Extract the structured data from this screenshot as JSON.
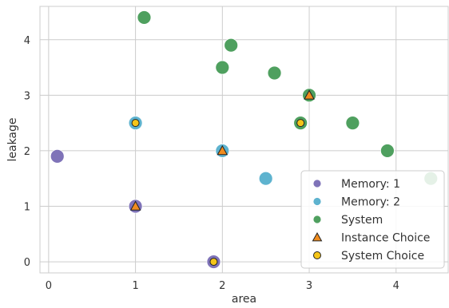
{
  "chart_data": {
    "type": "scatter",
    "xlabel": "area",
    "ylabel": "leakage",
    "xlim": [
      -0.1,
      4.6
    ],
    "ylim": [
      -0.2,
      4.6
    ],
    "xticks": [
      0,
      1,
      2,
      3,
      4
    ],
    "yticks": [
      0,
      1,
      2,
      3,
      4
    ],
    "grid": true,
    "legend_position": "lower-right",
    "series": [
      {
        "name": "Memory: 1",
        "marker": "circle",
        "color": "#7f73b8",
        "points": [
          {
            "x": 0.1,
            "y": 1.9
          },
          {
            "x": 1.0,
            "y": 1.0
          },
          {
            "x": 1.9,
            "y": 0.0
          }
        ]
      },
      {
        "name": "Memory: 2",
        "marker": "circle",
        "color": "#5eb3cf",
        "points": [
          {
            "x": 1.0,
            "y": 2.5
          },
          {
            "x": 2.0,
            "y": 2.0
          },
          {
            "x": 2.5,
            "y": 1.5
          }
        ]
      },
      {
        "name": "System",
        "marker": "circle",
        "color": "#4fa05f",
        "points": [
          {
            "x": 1.1,
            "y": 4.4
          },
          {
            "x": 2.1,
            "y": 3.9
          },
          {
            "x": 2.0,
            "y": 3.5
          },
          {
            "x": 2.6,
            "y": 3.4
          },
          {
            "x": 3.0,
            "y": 3.0
          },
          {
            "x": 2.9,
            "y": 2.5
          },
          {
            "x": 3.5,
            "y": 2.5
          },
          {
            "x": 3.9,
            "y": 2.0
          },
          {
            "x": 4.4,
            "y": 1.5
          }
        ]
      },
      {
        "name": "Instance Choice",
        "marker": "triangle",
        "color": "#f08c1e",
        "points": [
          {
            "x": 1.0,
            "y": 1.0
          },
          {
            "x": 2.0,
            "y": 2.0
          },
          {
            "x": 3.0,
            "y": 3.0
          }
        ]
      },
      {
        "name": "System Choice",
        "marker": "small-circle",
        "color": "#f5c518",
        "points": [
          {
            "x": 1.9,
            "y": 0.0
          },
          {
            "x": 1.0,
            "y": 2.5
          },
          {
            "x": 2.9,
            "y": 2.5
          }
        ]
      }
    ]
  }
}
